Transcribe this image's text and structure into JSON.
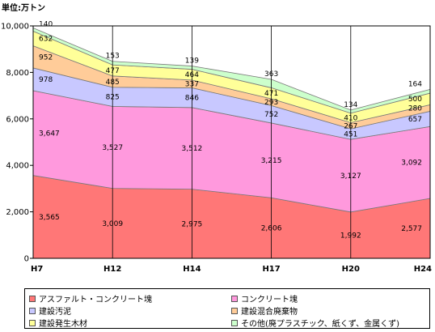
{
  "unit_label": "単位:万トン",
  "chart_data": {
    "type": "area",
    "stacked": true,
    "categories": [
      "H7",
      "H12",
      "H14",
      "H17",
      "H20",
      "H24"
    ],
    "ylim": [
      0,
      10000
    ],
    "yticks": [
      "0",
      "2,000",
      "4,000",
      "6,000",
      "8,000",
      "10,000"
    ],
    "ytick_values": [
      0,
      2000,
      4000,
      6000,
      8000,
      10000
    ],
    "grid": "vertical lines at categories",
    "legend_position": "bottom",
    "series": [
      {
        "name": "アスファルト・コンクリート塊",
        "values": [
          3565,
          3009,
          2975,
          2606,
          1992,
          2577
        ],
        "labels": [
          "3,565",
          "3,009",
          "2,975",
          "2,606",
          "1,992",
          "2,577"
        ],
        "color": "#ff7777"
      },
      {
        "name": "コンクリート塊",
        "values": [
          3647,
          3527,
          3512,
          3215,
          3127,
          3092
        ],
        "labels": [
          "3,647",
          "3,527",
          "3,512",
          "3,215",
          "3,127",
          "3,092"
        ],
        "color": "#ff99dd"
      },
      {
        "name": "建設汚泥",
        "values": [
          978,
          825,
          846,
          752,
          451,
          657
        ],
        "labels": [
          "978",
          "825",
          "846",
          "752",
          "451",
          "657"
        ],
        "color": "#c8c8ff"
      },
      {
        "name": "建設混合廃棄物",
        "values": [
          952,
          485,
          337,
          293,
          267,
          280
        ],
        "labels": [
          "952",
          "485",
          "337",
          "293",
          "267",
          "280"
        ],
        "color": "#ffcc99"
      },
      {
        "name": "建設発生木材",
        "values": [
          632,
          477,
          464,
          471,
          410,
          500
        ],
        "labels": [
          "632",
          "477",
          "464",
          "471",
          "410",
          "500"
        ],
        "color": "#ffff99"
      },
      {
        "name": "その他(廃プラスチック、紙くず、金属くず)",
        "values": [
          140,
          153,
          139,
          363,
          134,
          164
        ],
        "labels": [
          "140",
          "153",
          "139",
          "363",
          "134",
          "164"
        ],
        "color": "#ccffcc"
      }
    ]
  }
}
